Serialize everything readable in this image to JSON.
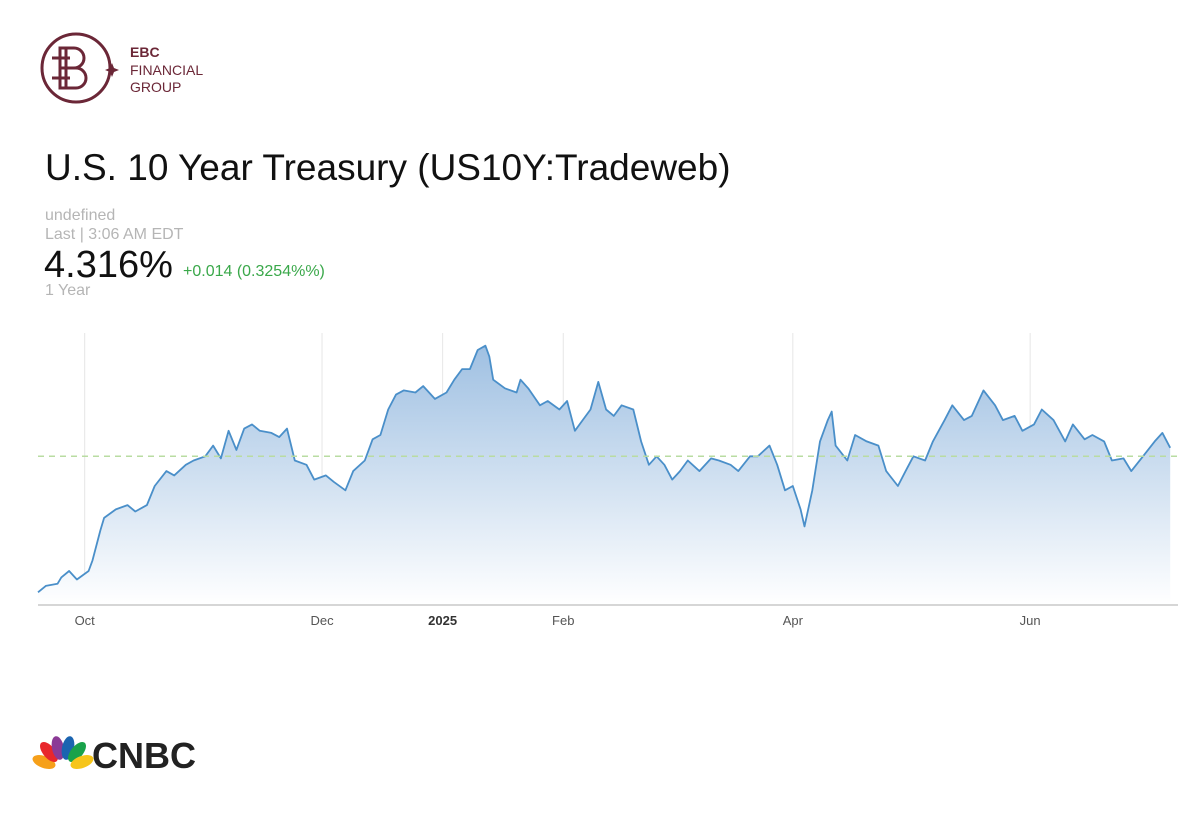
{
  "brand": {
    "line1": "EBC",
    "line2": "FINANCIAL",
    "line3": "GROUP"
  },
  "quote": {
    "title": "U.S. 10 Year Treasury (US10Y:Tradeweb)",
    "subtitle": "undefined",
    "time": "Last | 3:06 AM EDT",
    "last": "4.316%",
    "change": "+0.014 (0.3254%%)",
    "range": "1 Year"
  },
  "chart_data": {
    "type": "area",
    "color": "#4a8fc9",
    "x": [
      -12,
      -10,
      -7,
      -6,
      -4,
      -2,
      1,
      2,
      4,
      5,
      8,
      11,
      13,
      16,
      18,
      21,
      23,
      26,
      28,
      31,
      33,
      35,
      37,
      39,
      41,
      43,
      45,
      48,
      50,
      52,
      54,
      57,
      59,
      62,
      64,
      67,
      69,
      72,
      74,
      76,
      78,
      80,
      82,
      85,
      87,
      90,
      93,
      95,
      97,
      99,
      101,
      103,
      104,
      105,
      108,
      111,
      112,
      114,
      117,
      119,
      122,
      124,
      126,
      128,
      130,
      132,
      134,
      136,
      138,
      141,
      143,
      145,
      147,
      149,
      151,
      153,
      155,
      158,
      161,
      163,
      166,
      168,
      171,
      173,
      176,
      178,
      180,
      182,
      184,
      185,
      187,
      189,
      191,
      192,
      193,
      196,
      198,
      201,
      204,
      206,
      209,
      211,
      213,
      216,
      218,
      221,
      223,
      226,
      228,
      231,
      234,
      236,
      239,
      241,
      244,
      246,
      249,
      252,
      254,
      257,
      259,
      262,
      264,
      267,
      269,
      272,
      275,
      277,
      279
    ],
    "values": [
      3.62,
      3.65,
      3.66,
      3.69,
      3.72,
      3.68,
      3.72,
      3.77,
      3.91,
      3.97,
      4.01,
      4.03,
      4.0,
      4.03,
      4.12,
      4.19,
      4.17,
      4.22,
      4.24,
      4.26,
      4.31,
      4.25,
      4.38,
      4.29,
      4.39,
      4.41,
      4.38,
      4.37,
      4.35,
      4.39,
      4.24,
      4.22,
      4.15,
      4.17,
      4.14,
      4.1,
      4.19,
      4.24,
      4.34,
      4.36,
      4.48,
      4.55,
      4.57,
      4.56,
      4.59,
      4.53,
      4.56,
      4.62,
      4.67,
      4.67,
      4.76,
      4.78,
      4.73,
      4.62,
      4.58,
      4.56,
      4.62,
      4.58,
      4.5,
      4.52,
      4.48,
      4.52,
      4.38,
      4.43,
      4.48,
      4.61,
      4.48,
      4.45,
      4.5,
      4.48,
      4.33,
      4.22,
      4.26,
      4.22,
      4.15,
      4.19,
      4.24,
      4.19,
      4.25,
      4.24,
      4.22,
      4.19,
      4.26,
      4.26,
      4.31,
      4.22,
      4.1,
      4.12,
      4.01,
      3.93,
      4.1,
      4.33,
      4.43,
      4.47,
      4.31,
      4.24,
      4.36,
      4.33,
      4.31,
      4.19,
      4.12,
      4.19,
      4.26,
      4.24,
      4.33,
      4.43,
      4.5,
      4.43,
      4.45,
      4.57,
      4.5,
      4.43,
      4.45,
      4.38,
      4.41,
      4.48,
      4.43,
      4.33,
      4.41,
      4.34,
      4.36,
      4.33,
      4.24,
      4.25,
      4.19,
      4.26,
      4.33,
      4.37,
      4.3
    ],
    "xlim": [
      -12,
      281
    ],
    "ylim": [
      3.56,
      4.84
    ],
    "xticks": [
      {
        "value": 0,
        "label": "Oct"
      },
      {
        "value": 61,
        "label": "Dec"
      },
      {
        "value": 92,
        "label": "2025"
      },
      {
        "value": 123,
        "label": "Feb"
      },
      {
        "value": 182,
        "label": "Apr"
      },
      {
        "value": 243,
        "label": "Jun"
      }
    ],
    "reference_line": 4.26,
    "watermark": "CNBC"
  },
  "footer_logo": "CNBC"
}
